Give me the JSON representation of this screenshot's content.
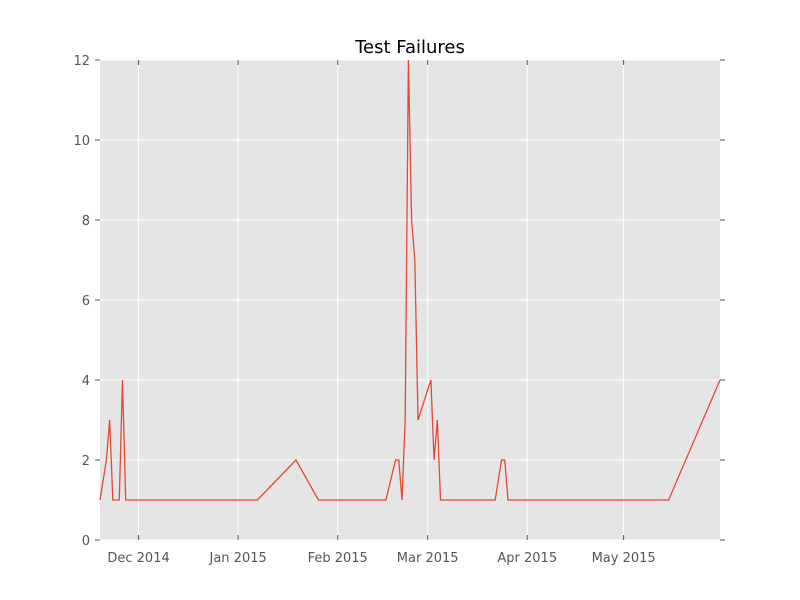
{
  "chart_data": {
    "type": "line",
    "title": "Test Failures",
    "xlabel": "",
    "ylabel": "",
    "xlim": [
      "2014-11-19",
      "2015-05-31"
    ],
    "ylim": [
      0,
      12
    ],
    "grid": true,
    "x_ticks": [
      {
        "date": "2014-12-01",
        "label": "Dec 2014"
      },
      {
        "date": "2015-01-01",
        "label": "Jan 2015"
      },
      {
        "date": "2015-02-01",
        "label": "Feb 2015"
      },
      {
        "date": "2015-03-01",
        "label": "Mar 2015"
      },
      {
        "date": "2015-04-01",
        "label": "Apr 2015"
      },
      {
        "date": "2015-05-01",
        "label": "May 2015"
      }
    ],
    "y_ticks": [
      0,
      2,
      4,
      6,
      8,
      10,
      12
    ],
    "series": [
      {
        "color": "#e24a33",
        "points": [
          {
            "x": "2014-11-19",
            "y": 1
          },
          {
            "x": "2014-11-21",
            "y": 2
          },
          {
            "x": "2014-11-22",
            "y": 3
          },
          {
            "x": "2014-11-23",
            "y": 1
          },
          {
            "x": "2014-11-25",
            "y": 1
          },
          {
            "x": "2014-11-26",
            "y": 4
          },
          {
            "x": "2014-11-27",
            "y": 1
          },
          {
            "x": "2015-01-07",
            "y": 1
          },
          {
            "x": "2015-01-19",
            "y": 2
          },
          {
            "x": "2015-01-26",
            "y": 1
          },
          {
            "x": "2015-02-16",
            "y": 1
          },
          {
            "x": "2015-02-19",
            "y": 2
          },
          {
            "x": "2015-02-20",
            "y": 2
          },
          {
            "x": "2015-02-21",
            "y": 1
          },
          {
            "x": "2015-02-22",
            "y": 3
          },
          {
            "x": "2015-02-23",
            "y": 12
          },
          {
            "x": "2015-02-24",
            "y": 8
          },
          {
            "x": "2015-02-25",
            "y": 7
          },
          {
            "x": "2015-02-26",
            "y": 3
          },
          {
            "x": "2015-03-02",
            "y": 4
          },
          {
            "x": "2015-03-03",
            "y": 2
          },
          {
            "x": "2015-03-04",
            "y": 3
          },
          {
            "x": "2015-03-05",
            "y": 1
          },
          {
            "x": "2015-03-22",
            "y": 1
          },
          {
            "x": "2015-03-24",
            "y": 2
          },
          {
            "x": "2015-03-25",
            "y": 2
          },
          {
            "x": "2015-03-26",
            "y": 1
          },
          {
            "x": "2015-05-15",
            "y": 1
          },
          {
            "x": "2015-05-31",
            "y": 4
          }
        ]
      }
    ]
  }
}
